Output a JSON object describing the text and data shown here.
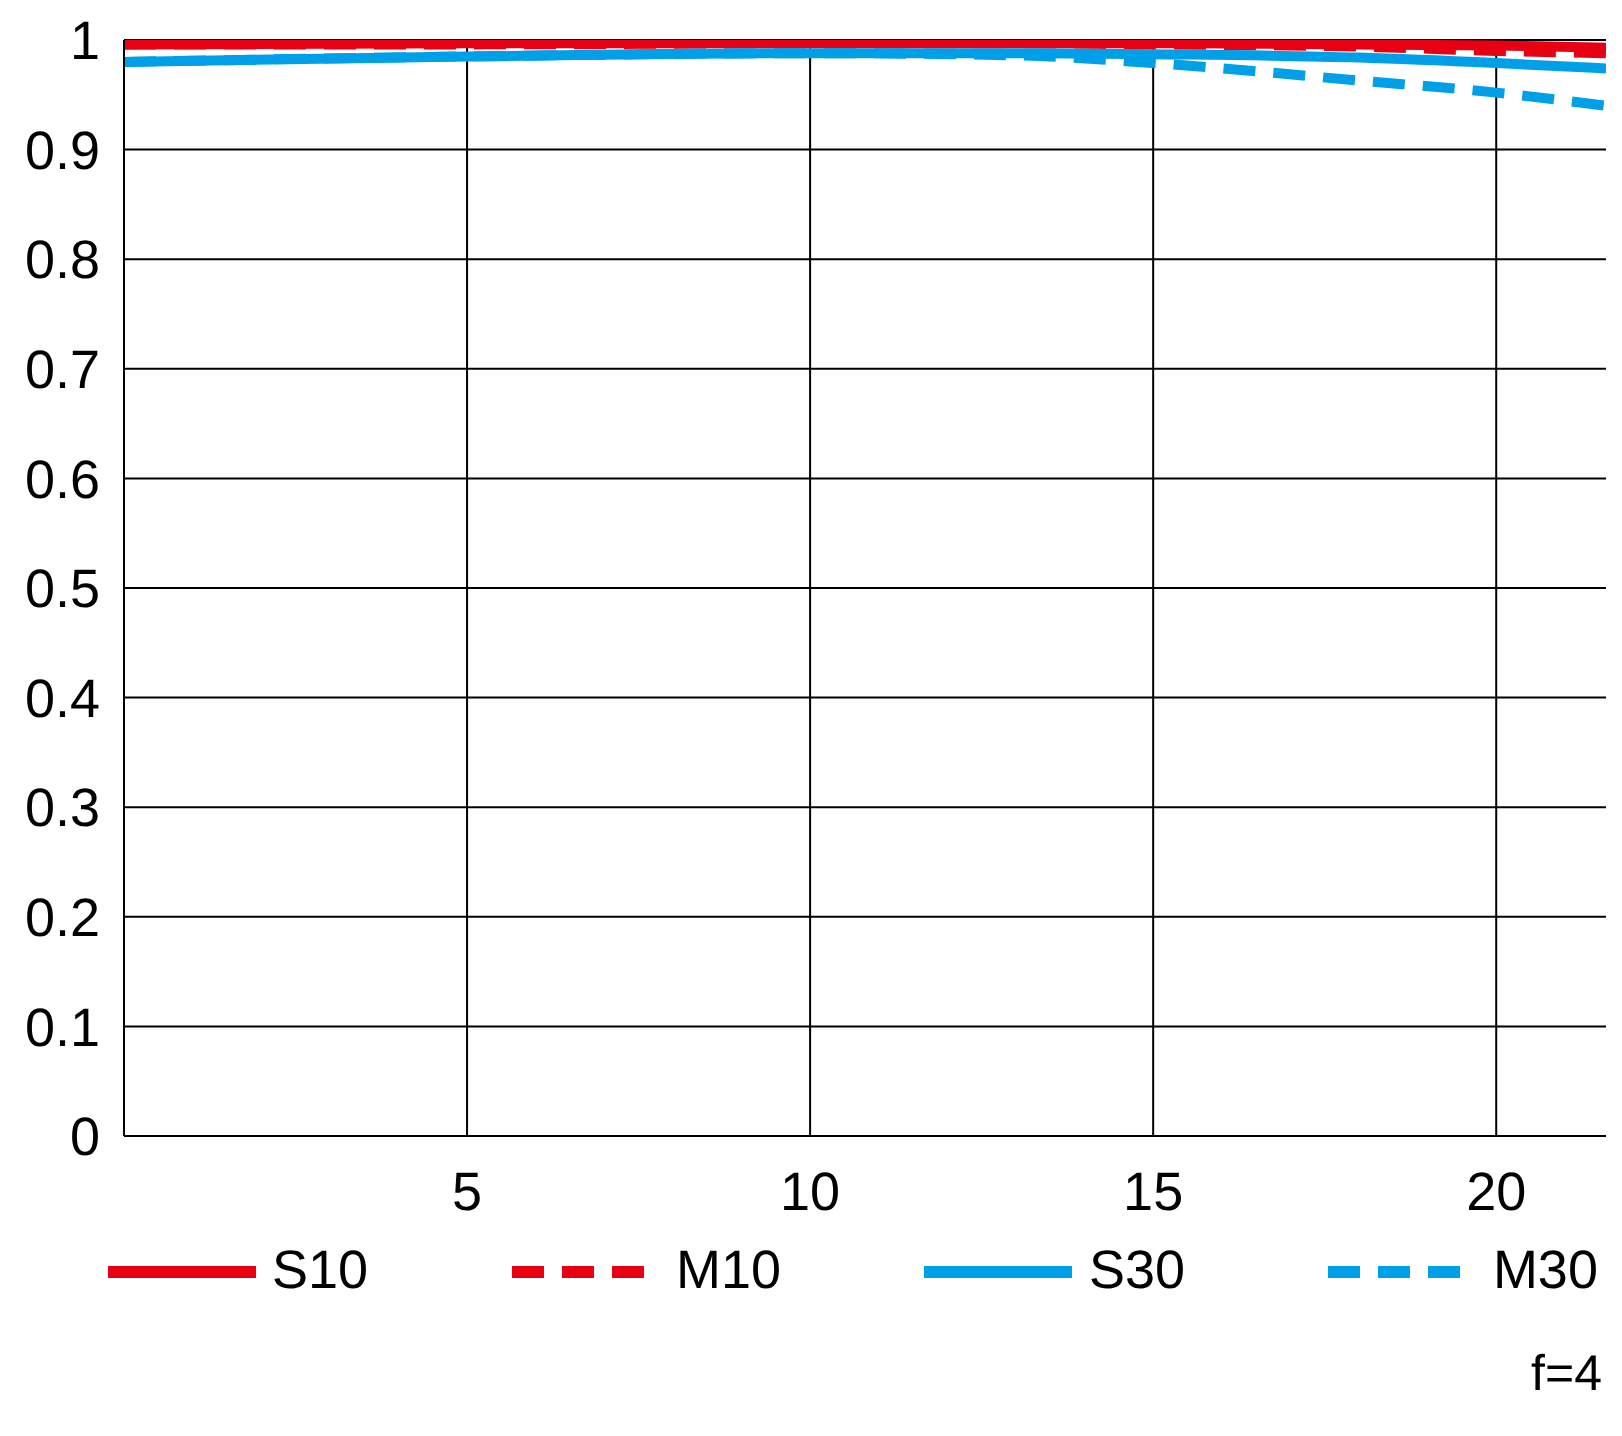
{
  "chart_data": {
    "type": "line",
    "x": [
      0,
      5,
      10,
      13,
      15,
      18,
      20,
      21.6
    ],
    "xlim": [
      0,
      21.6
    ],
    "xticks": [
      5,
      10,
      15,
      20
    ],
    "ylim": [
      0,
      1
    ],
    "yticks": [
      0,
      0.1,
      0.2,
      0.3,
      0.4,
      0.5,
      0.6,
      0.7,
      0.8,
      0.9,
      1
    ],
    "grid": true,
    "legend": "bottom",
    "marker": "none",
    "annotations": [
      "f=4"
    ],
    "series": [
      {
        "name": "S10",
        "color": "#e60012",
        "line_style": "solid",
        "values": [
          0.996,
          0.997,
          0.997,
          0.997,
          0.997,
          0.996,
          0.995,
          0.993
        ]
      },
      {
        "name": "M10",
        "color": "#e60012",
        "line_style": "dashed",
        "values": [
          0.996,
          0.996,
          0.997,
          0.997,
          0.996,
          0.994,
          0.99,
          0.988
        ]
      },
      {
        "name": "S30",
        "color": "#00a0e9",
        "line_style": "solid",
        "values": [
          0.98,
          0.985,
          0.988,
          0.988,
          0.987,
          0.984,
          0.979,
          0.974
        ]
      },
      {
        "name": "M30",
        "color": "#00a0e9",
        "line_style": "dashed",
        "values": [
          0.98,
          0.985,
          0.988,
          0.986,
          0.979,
          0.963,
          0.952,
          0.94
        ]
      }
    ]
  }
}
